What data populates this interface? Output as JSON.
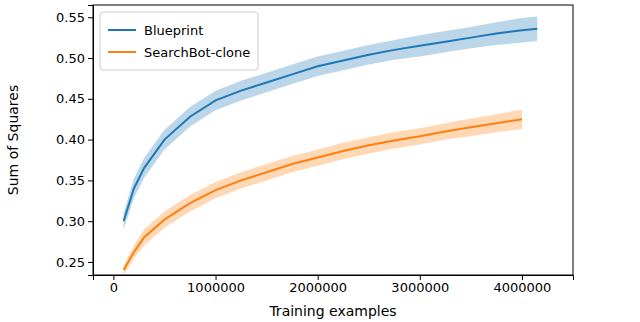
{
  "chart_data": {
    "type": "line",
    "x_label": "Training examples",
    "y_label": "Sum of Squares",
    "series": [
      {
        "name": "Blueprint",
        "color": "#1f77b4",
        "x": [
          100000,
          200000,
          300000,
          500000,
          750000,
          1000000,
          1250000,
          1500000,
          1750000,
          2000000,
          2250000,
          2500000,
          2750000,
          3000000,
          3250000,
          3500000,
          3750000,
          4000000,
          4150000
        ],
        "values": [
          0.3,
          0.34,
          0.365,
          0.4,
          0.428,
          0.448,
          0.46,
          0.47,
          0.48,
          0.49,
          0.497,
          0.504,
          0.51,
          0.515,
          0.52,
          0.525,
          0.53,
          0.534,
          0.536
        ],
        "error": [
          0.01,
          0.012,
          0.012,
          0.012,
          0.012,
          0.012,
          0.012,
          0.012,
          0.012,
          0.012,
          0.012,
          0.012,
          0.012,
          0.013,
          0.013,
          0.013,
          0.014,
          0.015,
          0.015
        ]
      },
      {
        "name": "SearchBot-clone",
        "color": "#ff7f0e",
        "x": [
          100000,
          200000,
          300000,
          500000,
          750000,
          1000000,
          1250000,
          1500000,
          1750000,
          2000000,
          2250000,
          2500000,
          2750000,
          3000000,
          3250000,
          3500000,
          3750000,
          4000000
        ],
        "values": [
          0.24,
          0.262,
          0.28,
          0.302,
          0.322,
          0.338,
          0.35,
          0.36,
          0.37,
          0.378,
          0.386,
          0.393,
          0.399,
          0.404,
          0.41,
          0.415,
          0.42,
          0.425
        ],
        "error": [
          0.006,
          0.008,
          0.01,
          0.01,
          0.01,
          0.01,
          0.01,
          0.01,
          0.01,
          0.01,
          0.01,
          0.01,
          0.01,
          0.01,
          0.01,
          0.011,
          0.011,
          0.012
        ]
      }
    ],
    "xlim": [
      -200000,
      4500000
    ],
    "xticks": [
      0,
      1000000,
      2000000,
      3000000,
      4000000
    ],
    "ylim": [
      0.234,
      0.565
    ],
    "yticks": [
      0.25,
      {
        "value": 0.3,
        "label": "0.30"
      },
      0.35,
      {
        "value": 0.4,
        "label": "0.40"
      },
      0.45,
      {
        "value": 0.5,
        "label": "0.50"
      },
      0.55
    ],
    "grid": false,
    "legend": "upper left"
  }
}
